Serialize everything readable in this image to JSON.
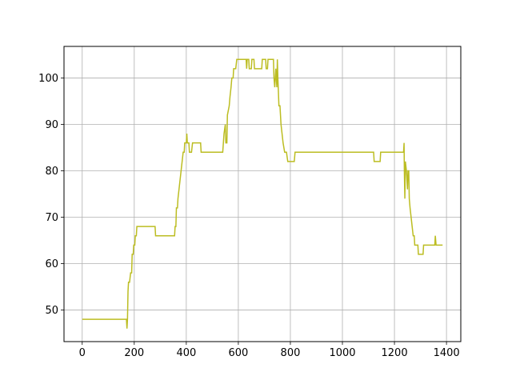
{
  "chart_data": {
    "type": "line",
    "title": "",
    "xlabel": "",
    "ylabel": "",
    "grid": true,
    "xlim": [
      -70,
      1455
    ],
    "ylim": [
      43.2,
      106.8
    ],
    "xticks": [
      0,
      200,
      400,
      600,
      800,
      1000,
      1200,
      1400
    ],
    "yticks": [
      50,
      60,
      70,
      80,
      90,
      100
    ],
    "xtick_labels": [
      "0",
      "200",
      "400",
      "600",
      "800",
      "1000",
      "1200",
      "1400"
    ],
    "ytick_labels": [
      "50",
      "60",
      "70",
      "80",
      "90",
      "100"
    ],
    "series": [
      {
        "name": "series",
        "color": "#bcbd22",
        "points": [
          [
            0,
            48
          ],
          [
            170,
            48
          ],
          [
            172,
            46
          ],
          [
            174,
            48
          ],
          [
            176,
            54
          ],
          [
            178,
            56
          ],
          [
            182,
            56
          ],
          [
            186,
            58
          ],
          [
            190,
            58
          ],
          [
            192,
            62
          ],
          [
            196,
            62
          ],
          [
            198,
            64
          ],
          [
            202,
            64
          ],
          [
            204,
            66
          ],
          [
            208,
            66
          ],
          [
            210,
            68
          ],
          [
            280,
            68
          ],
          [
            282,
            66
          ],
          [
            355,
            66
          ],
          [
            357,
            68
          ],
          [
            360,
            68
          ],
          [
            362,
            72
          ],
          [
            366,
            72
          ],
          [
            368,
            74
          ],
          [
            372,
            76
          ],
          [
            376,
            78
          ],
          [
            380,
            80
          ],
          [
            384,
            82
          ],
          [
            388,
            84
          ],
          [
            392,
            84
          ],
          [
            394,
            86
          ],
          [
            400,
            86
          ],
          [
            402,
            88
          ],
          [
            404,
            86
          ],
          [
            410,
            86
          ],
          [
            412,
            84
          ],
          [
            420,
            84
          ],
          [
            424,
            86
          ],
          [
            455,
            86
          ],
          [
            457,
            84
          ],
          [
            540,
            84
          ],
          [
            545,
            88
          ],
          [
            550,
            90
          ],
          [
            552,
            86
          ],
          [
            556,
            86
          ],
          [
            558,
            92
          ],
          [
            565,
            94
          ],
          [
            568,
            96
          ],
          [
            572,
            98
          ],
          [
            575,
            100
          ],
          [
            580,
            100
          ],
          [
            582,
            102
          ],
          [
            590,
            102
          ],
          [
            594,
            104
          ],
          [
            630,
            104
          ],
          [
            632,
            102
          ],
          [
            634,
            104
          ],
          [
            640,
            104
          ],
          [
            642,
            102
          ],
          [
            650,
            102
          ],
          [
            652,
            104
          ],
          [
            660,
            104
          ],
          [
            662,
            102
          ],
          [
            690,
            102
          ],
          [
            692,
            104
          ],
          [
            705,
            104
          ],
          [
            707,
            102
          ],
          [
            712,
            102
          ],
          [
            714,
            104
          ],
          [
            735,
            104
          ],
          [
            737,
            100
          ],
          [
            740,
            98
          ],
          [
            744,
            102
          ],
          [
            748,
            98
          ],
          [
            750,
            104
          ],
          [
            752,
            100
          ],
          [
            756,
            94
          ],
          [
            760,
            94
          ],
          [
            764,
            90
          ],
          [
            768,
            88
          ],
          [
            772,
            86
          ],
          [
            778,
            84
          ],
          [
            785,
            84
          ],
          [
            790,
            82
          ],
          [
            815,
            82
          ],
          [
            818,
            84
          ],
          [
            1120,
            84
          ],
          [
            1122,
            82
          ],
          [
            1145,
            82
          ],
          [
            1147,
            84
          ],
          [
            1235,
            84
          ],
          [
            1237,
            86
          ],
          [
            1238,
            80
          ],
          [
            1240,
            74
          ],
          [
            1242,
            82
          ],
          [
            1246,
            80
          ],
          [
            1248,
            78
          ],
          [
            1250,
            76
          ],
          [
            1252,
            80
          ],
          [
            1255,
            80
          ],
          [
            1257,
            74
          ],
          [
            1260,
            72
          ],
          [
            1264,
            70
          ],
          [
            1268,
            68
          ],
          [
            1272,
            66
          ],
          [
            1276,
            66
          ],
          [
            1278,
            64
          ],
          [
            1290,
            64
          ],
          [
            1292,
            62
          ],
          [
            1310,
            62
          ],
          [
            1312,
            64
          ],
          [
            1355,
            64
          ],
          [
            1357,
            66
          ],
          [
            1360,
            64
          ],
          [
            1385,
            64
          ]
        ]
      }
    ]
  }
}
